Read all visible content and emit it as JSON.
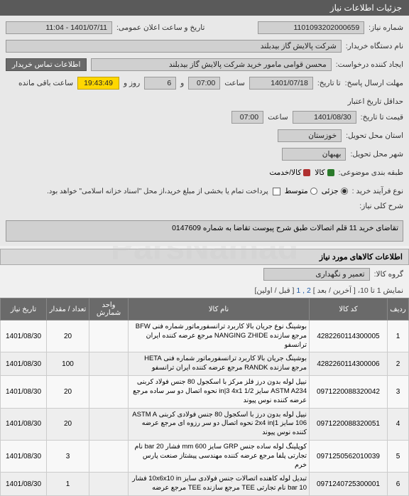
{
  "header": {
    "title": "جزئیات اطلاعات نیاز"
  },
  "panel": {
    "need_no_label": "شماره نیاز:",
    "need_no": "1101093202000659",
    "announce_label": "تاریخ و ساعت اعلان عمومی:",
    "announce_value": "1401/07/11 - 11:04",
    "buyer_org_label": "نام دستگاه خریدار:",
    "buyer_org": "شرکت پالایش گاز بیدبلند",
    "requester_label": "ایجاد کننده درخواست:",
    "requester": "محسن قوامی مامور خرید شرکت پالایش گاز بیدبلند",
    "contact_btn": "اطلاعات تماس خریدار",
    "deadline_send_label": "مهلت ارسال پاسخ:",
    "deadline_send_till": "تا تاریخ:",
    "deadline_date": "1401/07/18",
    "hour_label": "ساعت",
    "deadline_time": "07:00",
    "and_label": "و",
    "days_remaining": "6",
    "days_label": "روز و",
    "countdown": "19:43:49",
    "remaining_suffix": "ساعت باقی مانده",
    "min_validity_label": "حداقل تاریخ اعتبار",
    "price_till_label": "قیمت تا تاریخ:",
    "validity_date": "1401/08/30",
    "validity_time": "07:00",
    "province_label": "استان محل تحویل:",
    "province": "خوزستان",
    "city_label": "شهر محل تحویل:",
    "city": "بهبهان",
    "category_label": "طبقه بندی موضوعی:",
    "goods_label": "کالا",
    "service_label": "کالا/خدمت",
    "process_label": "نوع فرآیند خرید :",
    "process_partial": "جزئی",
    "process_mid": "متوسط",
    "pay_note": "پرداخت تمام یا بخشی از مبلغ خرید،از محل \"اسناد خزانه اسلامی\" خواهد بود.",
    "general_desc_label": "شرح کلی نیاز:",
    "general_desc": "تقاضای خرید 11 قلم اتصالات طبق شرح پیوست تقاضا به شماره 0147609"
  },
  "items_section": {
    "header": "اطلاعات کالاهای مورد نیاز",
    "group_label": "گروه کالا:",
    "group_value": "تعمیر و نگهداری",
    "pager_text": "نمایش 1 تا 10، [ آخرین / بعد ]",
    "pager_pages": "2 , 1",
    "pager_suffix": "[ قبل / اولین]"
  },
  "table": {
    "columns": [
      "ردیف",
      "کد کالا",
      "نام کالا",
      "واحد شمارش",
      "تعداد / مقدار",
      "تاریخ نیاز"
    ],
    "rows": [
      {
        "idx": "1",
        "code": "4282260114300005",
        "name": "بوشینگ نوع جریان بالا کاربرد ترانسفورماتور شماره فنی BFW مرجع سازنده NANGING ZHIDE مرجع عرضه کننده ایران ترانسفو",
        "unit": "",
        "qty": "20",
        "date": "1401/08/30"
      },
      {
        "idx": "2",
        "code": "4282260114300006",
        "name": "بوشینگ جریان بالا کاربرد ترانسفورماتور شماره فنی HETA مرجع سازنده RANDK مرجع عرضه کننده ایران ترانسفو",
        "unit": "",
        "qty": "100",
        "date": "1401/08/30"
      },
      {
        "idx": "3",
        "code": "0971220088320042",
        "name": "نیپل لوله بدون درز فلز مرکز با اسکجول 80 جنس فولاد کربنی ASTM A234 سایز 1/2 in|3 4x1 نحوه اتصال دو سر ساده مرجع عرضه کننده نوس پیوند",
        "unit": "",
        "qty": "20",
        "date": "1401/08/30"
      },
      {
        "idx": "4",
        "code": "0971220088320051",
        "name": "نیپل لوله بدون درز با اسکجول 80 جنس فولادی کربنی ASTM A 106 سایز 2x4 in|1 نحوه اتصال دو سر رزوه ای مرجع عرضه کننده نوس پیوند",
        "unit": "",
        "qty": "20",
        "date": "1401/08/30"
      },
      {
        "idx": "5",
        "code": "0971250562010039",
        "name": "کوپلینگ لوله ساده جنس GRP سایز mm 600 فشار bar 20 نام تجارتی پلفا مرجع عرضه کننده مهندسی پیشتاز صنعت پارس خرم",
        "unit": "",
        "qty": "3",
        "date": "1401/08/30"
      },
      {
        "idx": "6",
        "code": "0971240725300001",
        "name": "تبدیل لوله کاهنده اتصالات جنس فولادی سایز 10x6x10 in فشار bar 10 نام تجارتی TEE مرجع سازنده TEE مرجع عرضه",
        "unit": "",
        "qty": "1",
        "date": "1401/08/30"
      }
    ]
  }
}
